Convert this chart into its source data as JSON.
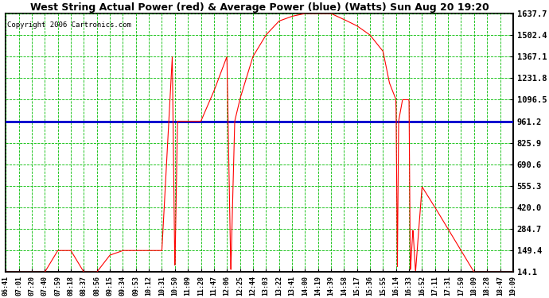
{
  "title": "West String Actual Power (red) & Average Power (blue) (Watts) Sun Aug 20 19:20",
  "copyright": "Copyright 2006 Cartronics.com",
  "ylabel_right": [
    "14.1",
    "149.4",
    "284.7",
    "420.0",
    "555.3",
    "690.6",
    "825.9",
    "961.2",
    "1096.5",
    "1231.8",
    "1367.1",
    "1502.4",
    "1637.7"
  ],
  "ymin": 14.1,
  "ymax": 1637.7,
  "average_power": 961.2,
  "background_color": "#ffffff",
  "plot_bg_color": "#ffffff",
  "grid_color": "#00bb00",
  "title_color": "#000000",
  "copyright_color": "#000000",
  "line_color_actual": "#ff0000",
  "line_color_avg": "#0000cc",
  "x_labels": [
    "06:41",
    "07:01",
    "07:20",
    "07:40",
    "07:59",
    "08:18",
    "08:37",
    "08:56",
    "09:15",
    "09:34",
    "09:53",
    "10:12",
    "10:31",
    "10:50",
    "11:09",
    "11:28",
    "11:47",
    "12:06",
    "12:25",
    "12:44",
    "13:03",
    "13:22",
    "13:41",
    "14:00",
    "14:19",
    "14:39",
    "14:58",
    "15:17",
    "15:36",
    "15:55",
    "16:14",
    "16:33",
    "16:52",
    "17:11",
    "17:31",
    "17:50",
    "18:09",
    "18:28",
    "18:47",
    "19:09"
  ],
  "actual_power": [
    14.1,
    14.1,
    14.1,
    14.1,
    14.1,
    14.1,
    14.1,
    14.1,
    120.0,
    150.0,
    149.4,
    149.4,
    149.4,
    149.4,
    149.4,
    149.4,
    800.0,
    961.2,
    1050.0,
    1231.8,
    1367.1,
    1367.1,
    14.1,
    961.2,
    1367.1,
    1502.4,
    1590.0,
    1620.0,
    1637.7,
    1637.7,
    1637.7,
    1637.7,
    1600.0,
    1560.0,
    1502.4,
    1420.0,
    1300.0,
    1200.0,
    1096.5,
    1000.0,
    1096.5,
    961.2,
    14.1,
    961.2,
    14.1,
    280.0,
    550.0,
    420.0,
    284.7,
    149.4,
    14.1,
    14.1,
    14.1,
    14.1,
    14.1,
    14.1,
    14.1,
    14.1,
    14.1,
    14.1
  ]
}
